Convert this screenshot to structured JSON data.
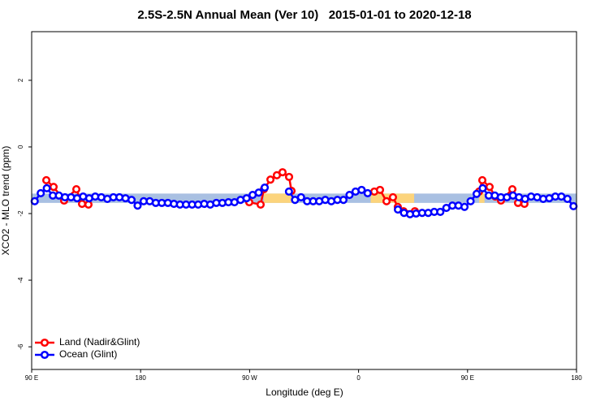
{
  "chart_data": {
    "type": "line",
    "title": "2.5S-2.5N Annual Mean (Ver 10)   2015-01-01 to 2020-12-18",
    "x_label": "Longitude (deg E)",
    "y_label": "XCO2 - MLO trend (ppm)",
    "xlim": [
      90,
      540
    ],
    "xticks": [
      {
        "value": 90,
        "label": "90 E"
      },
      {
        "value": 180,
        "label": "180"
      },
      {
        "value": 270,
        "label": "90 W"
      },
      {
        "value": 360,
        "label": "0"
      },
      {
        "value": 450,
        "label": "90 E"
      },
      {
        "value": 540,
        "label": "180"
      }
    ],
    "ylim": [
      -6.68,
      3.46
    ],
    "yticks": [
      -6,
      -4,
      -2,
      0,
      2
    ],
    "legend": "bottom-left",
    "band_range": [
      -1.68,
      -1.4
    ],
    "bands": [
      {
        "color": "#a9c0e2",
        "x": [
          90,
          540
        ]
      },
      {
        "color": "#fcd47c",
        "x": [
          281.8,
          305.3
        ]
      },
      {
        "color": "#fcd47c",
        "x": [
          370,
          405.9
        ]
      },
      {
        "color": "#fcd47c",
        "x": [
          459.5,
          464
        ]
      }
    ],
    "series": [
      {
        "name": "Land (Nadir&Glint)",
        "color": "#ff0000",
        "x": [
          102.1,
          108.1,
          116.8,
          126.9,
          131.6,
          136.9,
          null,
          269.7,
          279.1,
          281.8,
          287.2,
          292.5,
          297.2,
          302.6,
          304.6,
          null,
          373.0,
          377.7,
          383.1,
          388.4,
          392.4,
          397.1,
          406.5,
          null,
          459.5,
          462.2,
          468.2,
          472.9,
          477.6,
          487.0,
          491.7,
          497.0
        ],
        "values": [
          -1.0,
          -1.2,
          -1.61,
          -1.27,
          -1.71,
          -1.73,
          null,
          -1.66,
          -1.73,
          -1.27,
          -0.98,
          -0.85,
          -0.76,
          -0.9,
          -1.32,
          null,
          -1.34,
          -1.29,
          -1.63,
          -1.51,
          -1.8,
          -1.93,
          -1.93,
          null,
          -1.34,
          -1.0,
          -1.2,
          -1.49,
          -1.61,
          -1.27,
          -1.68,
          -1.71
        ]
      },
      {
        "name": "Ocean (Glint)",
        "color": "#0000ff",
        "x": [
          92.5,
          97.5,
          102.5,
          107.5,
          112.5,
          117.5,
          122.5,
          127.5,
          132.5,
          137.5,
          142.5,
          147.5,
          152.5,
          157.5,
          162.5,
          167.5,
          172.5,
          177.5,
          182.5,
          187.5,
          192.5,
          197.5,
          202.5,
          207.5,
          212.5,
          217.5,
          222.5,
          227.5,
          232.5,
          237.5,
          242.5,
          247.5,
          252.5,
          257.5,
          262.5,
          267.5,
          272.5,
          277.5,
          282.5,
          287.5,
          292.5,
          297.5,
          302.5,
          307.5,
          312.5,
          317.5,
          322.5,
          327.5,
          332.5,
          337.5,
          342.5,
          347.5,
          352.5,
          357.5,
          362.5,
          367.5,
          372.5,
          377.5,
          382.5,
          387.5,
          392.5,
          397.5,
          402.5,
          407.5,
          412.5,
          417.5,
          422.5,
          427.5,
          432.5,
          437.5,
          442.5,
          447.5,
          452.5,
          457.5,
          462.5,
          467.5,
          472.5,
          477.5,
          482.5,
          487.5,
          492.5,
          497.5,
          502.5,
          507.5,
          512.5,
          517.5,
          522.5,
          527.5,
          532.5,
          537.5
        ],
        "values": [
          -1.63,
          -1.39,
          -1.24,
          -1.46,
          -1.46,
          -1.51,
          -1.51,
          -1.54,
          -1.49,
          -1.54,
          -1.49,
          -1.51,
          -1.56,
          -1.51,
          -1.51,
          -1.54,
          -1.59,
          -1.76,
          -1.63,
          -1.63,
          -1.68,
          -1.68,
          -1.68,
          -1.71,
          -1.73,
          -1.73,
          -1.73,
          -1.73,
          -1.71,
          -1.73,
          -1.68,
          -1.68,
          -1.66,
          -1.66,
          -1.59,
          -1.54,
          -1.44,
          -1.37,
          -1.22,
          null,
          null,
          null,
          -1.34,
          -1.59,
          -1.51,
          -1.63,
          -1.63,
          -1.63,
          -1.59,
          -1.63,
          -1.59,
          -1.59,
          -1.44,
          -1.34,
          -1.29,
          -1.39,
          null,
          null,
          null,
          null,
          -1.88,
          -1.98,
          -2.02,
          -2.0,
          -1.98,
          -1.98,
          -1.95,
          -1.95,
          -1.83,
          -1.76,
          -1.76,
          -1.8,
          -1.63,
          -1.41,
          -1.24,
          -1.46,
          -1.46,
          -1.51,
          -1.51,
          -1.46,
          -1.51,
          -1.56,
          -1.49,
          -1.51,
          -1.56,
          -1.54,
          -1.49,
          -1.49,
          -1.56,
          -1.78
        ]
      }
    ]
  }
}
